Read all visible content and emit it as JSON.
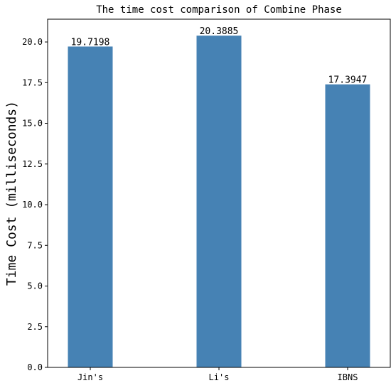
{
  "chart_data": {
    "type": "bar",
    "title": "The time cost comparison of Combine Phase",
    "xlabel": "",
    "ylabel": "Time Cost (milliseconds)",
    "categories": [
      "Jin's",
      "Li's",
      "IBNS"
    ],
    "values": [
      19.7198,
      20.3885,
      17.3947
    ],
    "value_labels": [
      "19.7198",
      "20.3885",
      "17.3947"
    ],
    "ylim": [
      0,
      21.4
    ],
    "yticks": [
      0.0,
      2.5,
      5.0,
      7.5,
      10.0,
      12.5,
      15.0,
      17.5,
      20.0
    ],
    "ytick_labels": [
      "0.0",
      "2.5",
      "5.0",
      "7.5",
      "10.0",
      "12.5",
      "15.0",
      "17.5",
      "20.0"
    ],
    "bar_color": "#4682b4",
    "grid": false,
    "legend": "none"
  }
}
